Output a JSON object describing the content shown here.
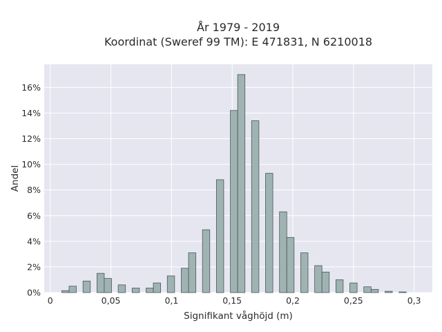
{
  "chart_data": {
    "type": "bar",
    "title_line1": "År 1979 - 2019",
    "title_line2": "Koordinat (Sweref 99 TM): E 471831, N 6210018",
    "xlabel": "Signifikant våghöjd (m)",
    "ylabel": "Andel",
    "xlim": [
      -0.005,
      0.315
    ],
    "ylim": [
      0,
      17.8
    ],
    "x_ticks": [
      {
        "value": 0,
        "label": "0"
      },
      {
        "value": 0.05,
        "label": "0,05"
      },
      {
        "value": 0.1,
        "label": "0,1"
      },
      {
        "value": 0.15,
        "label": "0,15"
      },
      {
        "value": 0.2,
        "label": "0,2"
      },
      {
        "value": 0.25,
        "label": "0,25"
      },
      {
        "value": 0.3,
        "label": "0,3"
      }
    ],
    "y_ticks": [
      {
        "value": 0,
        "label": "0%"
      },
      {
        "value": 2,
        "label": "2%"
      },
      {
        "value": 4,
        "label": "4%"
      },
      {
        "value": 6,
        "label": "6%"
      },
      {
        "value": 8,
        "label": "8%"
      },
      {
        "value": 10,
        "label": "10%"
      },
      {
        "value": 12,
        "label": "12%"
      },
      {
        "value": 14,
        "label": "14%"
      },
      {
        "value": 16,
        "label": "16%"
      }
    ],
    "bin_width": 0.006,
    "bars": [
      {
        "x": 0.0125,
        "y": 0.15
      },
      {
        "x": 0.0185,
        "y": 0.5
      },
      {
        "x": 0.03,
        "y": 0.9
      },
      {
        "x": 0.0415,
        "y": 1.5
      },
      {
        "x": 0.0475,
        "y": 1.1
      },
      {
        "x": 0.059,
        "y": 0.6
      },
      {
        "x": 0.0705,
        "y": 0.35
      },
      {
        "x": 0.082,
        "y": 0.35
      },
      {
        "x": 0.088,
        "y": 0.75
      },
      {
        "x": 0.0995,
        "y": 1.3
      },
      {
        "x": 0.111,
        "y": 1.9
      },
      {
        "x": 0.117,
        "y": 3.1
      },
      {
        "x": 0.1285,
        "y": 4.9
      },
      {
        "x": 0.14,
        "y": 8.8
      },
      {
        "x": 0.1515,
        "y": 14.2
      },
      {
        "x": 0.1575,
        "y": 17.0
      },
      {
        "x": 0.169,
        "y": 13.4
      },
      {
        "x": 0.1805,
        "y": 9.3
      },
      {
        "x": 0.192,
        "y": 6.3
      },
      {
        "x": 0.198,
        "y": 4.3
      },
      {
        "x": 0.2095,
        "y": 3.1
      },
      {
        "x": 0.221,
        "y": 2.1
      },
      {
        "x": 0.227,
        "y": 1.6
      },
      {
        "x": 0.2385,
        "y": 1.0
      },
      {
        "x": 0.25,
        "y": 0.75
      },
      {
        "x": 0.2615,
        "y": 0.45
      },
      {
        "x": 0.2675,
        "y": 0.25
      },
      {
        "x": 0.279,
        "y": 0.1
      },
      {
        "x": 0.2905,
        "y": 0.05
      }
    ],
    "grid": true,
    "colors": {
      "plot_bg": "#e5e6f0",
      "grid": "#ffffff",
      "bar_fill": "#9fb3b3",
      "bar_stroke": "#4a5656"
    }
  }
}
